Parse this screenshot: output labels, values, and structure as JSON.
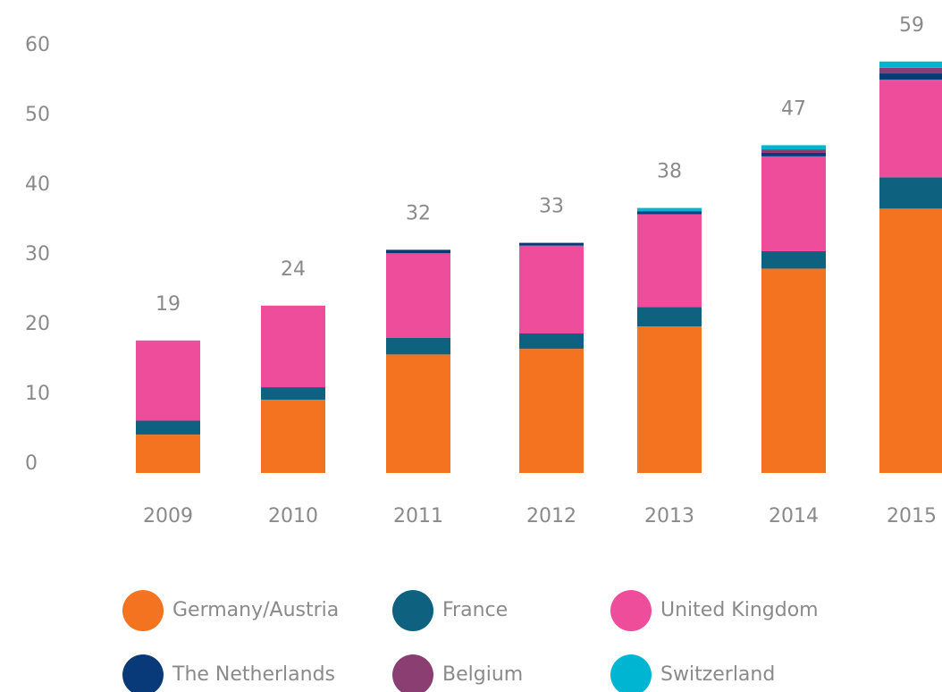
{
  "chart_data": {
    "type": "stacked_bar",
    "categories": [
      "2009",
      "2010",
      "2011",
      "2012",
      "2013",
      "2014",
      "2015"
    ],
    "totals": [
      19,
      24,
      32,
      33,
      38,
      47,
      59
    ],
    "series": [
      {
        "name": "Germany/Austria",
        "color": "#f47321",
        "values": [
          5.5,
          10.5,
          17,
          17.8,
          21,
          29.3,
          37.9
        ]
      },
      {
        "name": "France",
        "color": "#0e6280",
        "values": [
          2,
          1.8,
          2.4,
          2.2,
          2.8,
          2.5,
          4.5
        ]
      },
      {
        "name": "United Kingdom",
        "color": "#ee4d9b",
        "values": [
          11.5,
          11.7,
          12.1,
          12.6,
          13.3,
          13.6,
          14
        ]
      },
      {
        "name": "The Netherlands",
        "color": "#083a7a",
        "values": [
          null,
          null,
          0.5,
          0.4,
          0.4,
          0.5,
          0.9
        ]
      },
      {
        "name": "Belgium",
        "color": "#8b3e72",
        "values": [
          null,
          null,
          null,
          null,
          null,
          0.5,
          0.8
        ]
      },
      {
        "name": "Switzerland",
        "color": "#00b5d1",
        "values": [
          null,
          null,
          null,
          null,
          0.5,
          0.6,
          0.9
        ]
      }
    ],
    "ylim": [
      0,
      60
    ],
    "yticks": [
      0,
      10,
      20,
      30,
      40,
      50,
      60
    ],
    "grid": false
  }
}
